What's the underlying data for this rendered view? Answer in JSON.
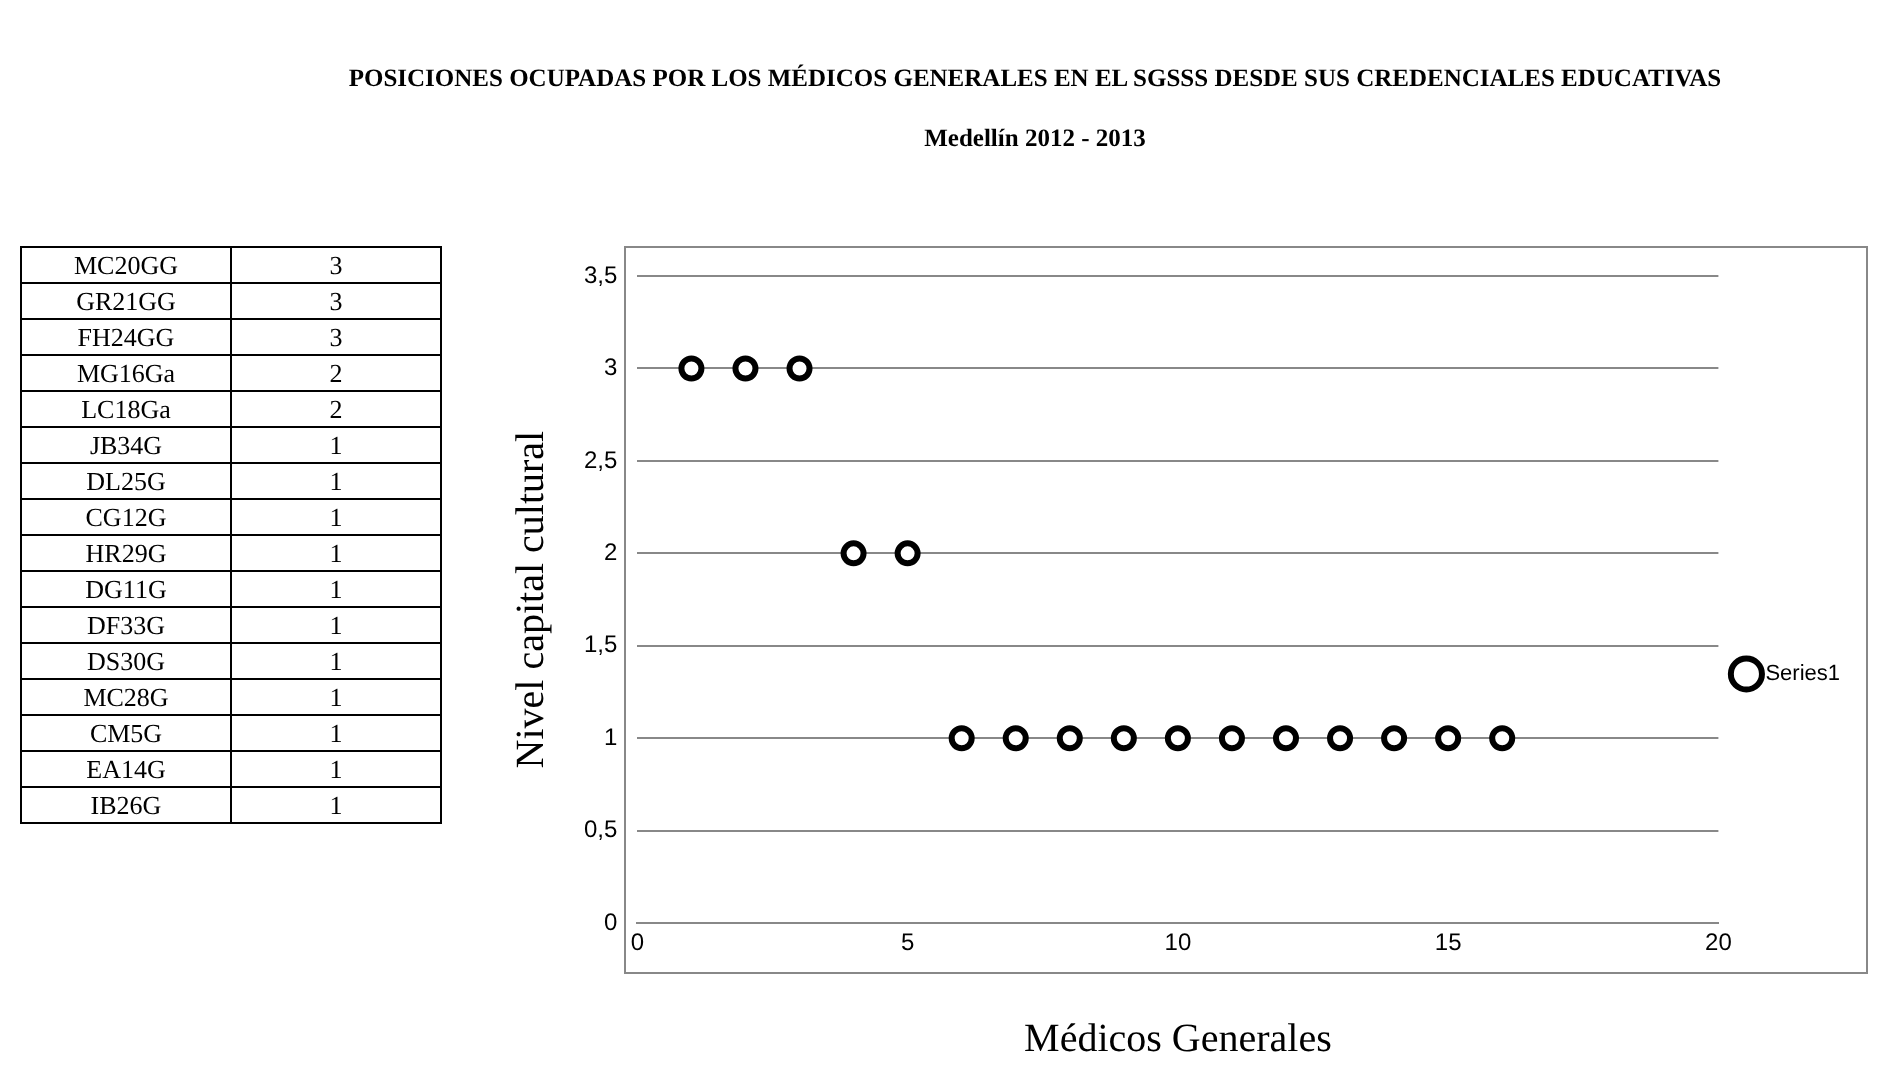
{
  "chart_data": [
    {
      "type": "other",
      "categories": [
        "MC20GG",
        "GR21GG",
        "FH24GG",
        "MG16Ga",
        "LC18Ga",
        "JB34G",
        "DL25G",
        "CG12G",
        "HR29G",
        "DG11G",
        "DF33G",
        "DS30G",
        "MC28G",
        "CM5G",
        "EA14G",
        "IB26G"
      ],
      "values": [
        3,
        3,
        3,
        2,
        2,
        1,
        1,
        1,
        1,
        1,
        1,
        1,
        1,
        1,
        1,
        1
      ],
      "data_labels": true
    },
    {
      "type": "scatter",
      "title": "POSICIONES OCUPADAS POR LOS MÉDICOS GENERALES EN EL SGSSS DESDE SUS CREDENCIALES EDUCATIVAS",
      "subtitle": "Medellín 2012 - 2013",
      "xlabel": "Médicos Generales",
      "ylabel": "Nivel capital cultural",
      "x": [
        1,
        2,
        3,
        4,
        5,
        6,
        7,
        8,
        9,
        10,
        11,
        12,
        13,
        14,
        15,
        16
      ],
      "series": [
        {
          "name": "Series1",
          "color": "#000000",
          "values": [
            3,
            3,
            3,
            2,
            2,
            1,
            1,
            1,
            1,
            1,
            1,
            1,
            1,
            1,
            1,
            1
          ]
        }
      ],
      "xlim": [
        0,
        20
      ],
      "xticks": [
        0,
        5,
        10,
        15,
        20
      ],
      "ylim": [
        0,
        3.5
      ],
      "yticks": [
        0,
        {
          "value": 0.5,
          "label": "0,5"
        },
        1,
        {
          "value": 1.5,
          "label": "1,5"
        },
        2,
        {
          "value": 2.5,
          "label": "2,5"
        },
        3,
        {
          "value": 3.5,
          "label": "3,5"
        }
      ],
      "grid": "y",
      "legend": "right",
      "marker": "circle"
    }
  ]
}
